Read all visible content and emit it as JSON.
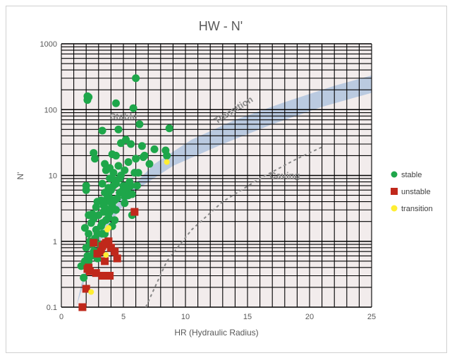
{
  "chart_data": {
    "type": "scatter",
    "title": "HW - N'",
    "xlabel": "HR (Hydraulic Radius)",
    "ylabel": "N'",
    "xlim": [
      0,
      25
    ],
    "ylim": [
      0.1,
      1000
    ],
    "y_scale": "log",
    "x_ticks": [
      "0",
      "5",
      "10",
      "15",
      "20",
      "25"
    ],
    "y_ticks": [
      "0.1",
      "1",
      "10",
      "100",
      "1000"
    ],
    "grid": true,
    "legend_position": "right",
    "colors": {
      "stable": "#1ea64a",
      "unstable": "#c0281b",
      "transition": "#ffee33",
      "band": "#b0c4de",
      "plot_bg": "#f2ecec"
    },
    "zone_labels": [
      "Stable",
      "Transition",
      "Caving"
    ],
    "band": {
      "lower": [
        [
          1.2,
          0.1
        ],
        [
          2.5,
          0.6
        ],
        [
          4,
          2
        ],
        [
          6,
          6
        ],
        [
          9,
          14
        ],
        [
          13,
          30
        ],
        [
          17,
          60
        ],
        [
          21,
          110
        ],
        [
          25,
          180
        ]
      ],
      "upper": [
        [
          1.6,
          0.22
        ],
        [
          3,
          1.5
        ],
        [
          5,
          5
        ],
        [
          7.5,
          15
        ],
        [
          10.5,
          35
        ],
        [
          14,
          70
        ],
        [
          18,
          130
        ],
        [
          22,
          230
        ],
        [
          25,
          330
        ]
      ]
    },
    "dashed_line": [
      [
        6.8,
        0.1
      ],
      [
        8.5,
        0.5
      ],
      [
        10.5,
        1.5
      ],
      [
        13,
        4
      ],
      [
        16,
        9
      ],
      [
        19,
        18
      ],
      [
        21,
        27
      ]
    ],
    "series": [
      {
        "name": "stable",
        "x": [
          2.1,
          2.1,
          2.2,
          6.0,
          5.8,
          4.4,
          3.3,
          4.6,
          6.3,
          8.7,
          2.6,
          2.7,
          5.2,
          4.8,
          5.6,
          6.5,
          7.5,
          8.4,
          8.5,
          6.7,
          6.0,
          4.1,
          4.4,
          3.5,
          3.9,
          4.6,
          5.4,
          6.6,
          7.1,
          3.6,
          4.2,
          4.8,
          5.1,
          5.9,
          6.2,
          3.9,
          4.3,
          4.7,
          5.5,
          3.3,
          3.8,
          4.2,
          4.4,
          5.0,
          5.3,
          5.6,
          6.1,
          3.5,
          3.8,
          4.0,
          4.7,
          4.9,
          5.2,
          3.7,
          4.1,
          4.5,
          5.1,
          5.4,
          5.7,
          2.0,
          2.9,
          3.2,
          2.0,
          3.6,
          4.3,
          5.1,
          2.8,
          3.4,
          3.6,
          3.9,
          4.4,
          5.7,
          2.5,
          3.0,
          3.4,
          3.8,
          4.3,
          2.2,
          2.6,
          3.3,
          3.6,
          4.1,
          1.9,
          2.4,
          2.8,
          3.2,
          3.5,
          2.2,
          2.9,
          3.3,
          2.3,
          2.7,
          3.1,
          3.7,
          2.0,
          2.5,
          2.1,
          2.9,
          2.7,
          2.2,
          2.4,
          2.6,
          1.9,
          1.6,
          1.9,
          1.8,
          4.1,
          3.9
        ],
        "y": [
          160,
          140,
          155,
          300,
          105,
          125,
          48,
          50,
          60,
          52,
          22,
          18,
          35,
          31,
          30,
          28,
          25,
          24,
          20,
          20,
          18,
          21,
          20,
          15,
          13,
          14,
          16,
          19,
          15,
          12,
          11,
          10,
          12,
          11,
          11,
          9,
          8.5,
          9,
          8,
          7.5,
          6.5,
          7,
          7.5,
          7,
          6,
          7,
          7,
          5.5,
          5,
          6,
          5.5,
          5.8,
          6.5,
          4.5,
          4.3,
          4.5,
          4.8,
          5,
          5.2,
          7,
          4,
          4.2,
          6,
          4,
          4.2,
          3.8,
          3.3,
          3.5,
          3.1,
          2.8,
          3,
          2.5,
          2.6,
          2.5,
          2.8,
          2.3,
          2.1,
          2.5,
          2.2,
          1.9,
          2.1,
          1.7,
          1.6,
          1.9,
          1.5,
          1.7,
          1.3,
          1.3,
          1.3,
          1.3,
          1.0,
          1.1,
          0.9,
          1.0,
          0.8,
          0.9,
          0.6,
          0.55,
          0.7,
          0.5,
          0.6,
          0.7,
          0.5,
          0.42,
          0.48,
          0.28,
          3.5,
          4
        ]
      },
      {
        "name": "unstable",
        "x": [
          5.9,
          3.8,
          3.6,
          3.3,
          3.5,
          4.0,
          4.3,
          4.5,
          2.9,
          2.6,
          3.2,
          3.5,
          2.1,
          2.2,
          2.3,
          2.8,
          3.3,
          3.9,
          2.0,
          1.7
        ],
        "y": [
          2.8,
          1.0,
          0.95,
          0.85,
          0.9,
          0.8,
          0.7,
          0.55,
          0.65,
          0.95,
          0.7,
          0.5,
          0.38,
          0.4,
          0.35,
          0.33,
          0.3,
          0.3,
          0.19,
          0.1
        ]
      },
      {
        "name": "transition",
        "x": [
          8.5,
          3.8,
          3.7,
          3.6,
          2.4
        ],
        "y": [
          16,
          1.6,
          1.5,
          0.62,
          0.17
        ]
      }
    ]
  }
}
